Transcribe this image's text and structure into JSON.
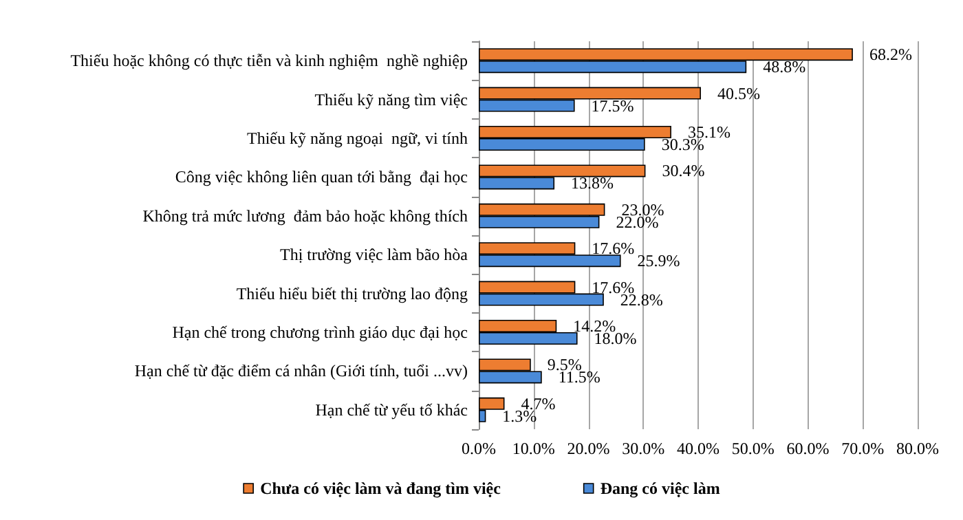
{
  "chart_data": {
    "type": "bar",
    "orientation": "horizontal",
    "categories": [
      "Thiếu hoặc không có thực tiễn và kinh nghiệm  nghề nghiệp",
      "Thiếu kỹ năng tìm việc",
      "Thiếu kỹ năng ngoại  ngữ, vi tính",
      "Công việc không liên quan tới bằng  đại học",
      "Không trả mức lương  đảm bảo hoặc không thích",
      "Thị trường việc làm bão hòa",
      "Thiếu hiểu biết thị trường lao động",
      "Hạn chế trong chương trình giáo dục đại học",
      "Hạn chế từ đặc điểm cá nhân (Giới tính, tuổi ...vv)",
      "Hạn chế từ yếu tố khác"
    ],
    "series": [
      {
        "name": "Chưa có việc làm và đang tìm việc",
        "color": "#ed7d31",
        "values": [
          68.2,
          40.5,
          35.1,
          30.4,
          23.0,
          17.6,
          17.6,
          14.2,
          9.5,
          4.7
        ],
        "value_labels": [
          "68.2%",
          "40.5%",
          "35.1%",
          "30.4%",
          "23.0%",
          "17.6%",
          "17.6%",
          "14.2%",
          "9.5%",
          "4.7%"
        ]
      },
      {
        "name": "Đang có việc làm",
        "color": "#4a8ad8",
        "values": [
          48.8,
          17.5,
          30.3,
          13.8,
          22.0,
          25.9,
          22.8,
          18.0,
          11.5,
          1.3
        ],
        "value_labels": [
          "48.8%",
          "17.5%",
          "30.3%",
          "13.8%",
          "22.0%",
          "25.9%",
          "22.8%",
          "18.0%",
          "11.5%",
          "1.3%"
        ]
      }
    ],
    "xlim": [
      0,
      80
    ],
    "xticks": [
      {
        "value": 0,
        "label": "0.0%"
      },
      {
        "value": 10,
        "label": "10.0%"
      },
      {
        "value": 20,
        "label": "20.0%"
      },
      {
        "value": 30,
        "label": "30.0%"
      },
      {
        "value": 40,
        "label": "40.0%"
      },
      {
        "value": 50,
        "label": "50.0%"
      },
      {
        "value": 60,
        "label": "60.0%"
      },
      {
        "value": 70,
        "label": "70.0%"
      },
      {
        "value": 80,
        "label": "80.0%"
      }
    ],
    "grid": "x",
    "legend": "bottom"
  }
}
